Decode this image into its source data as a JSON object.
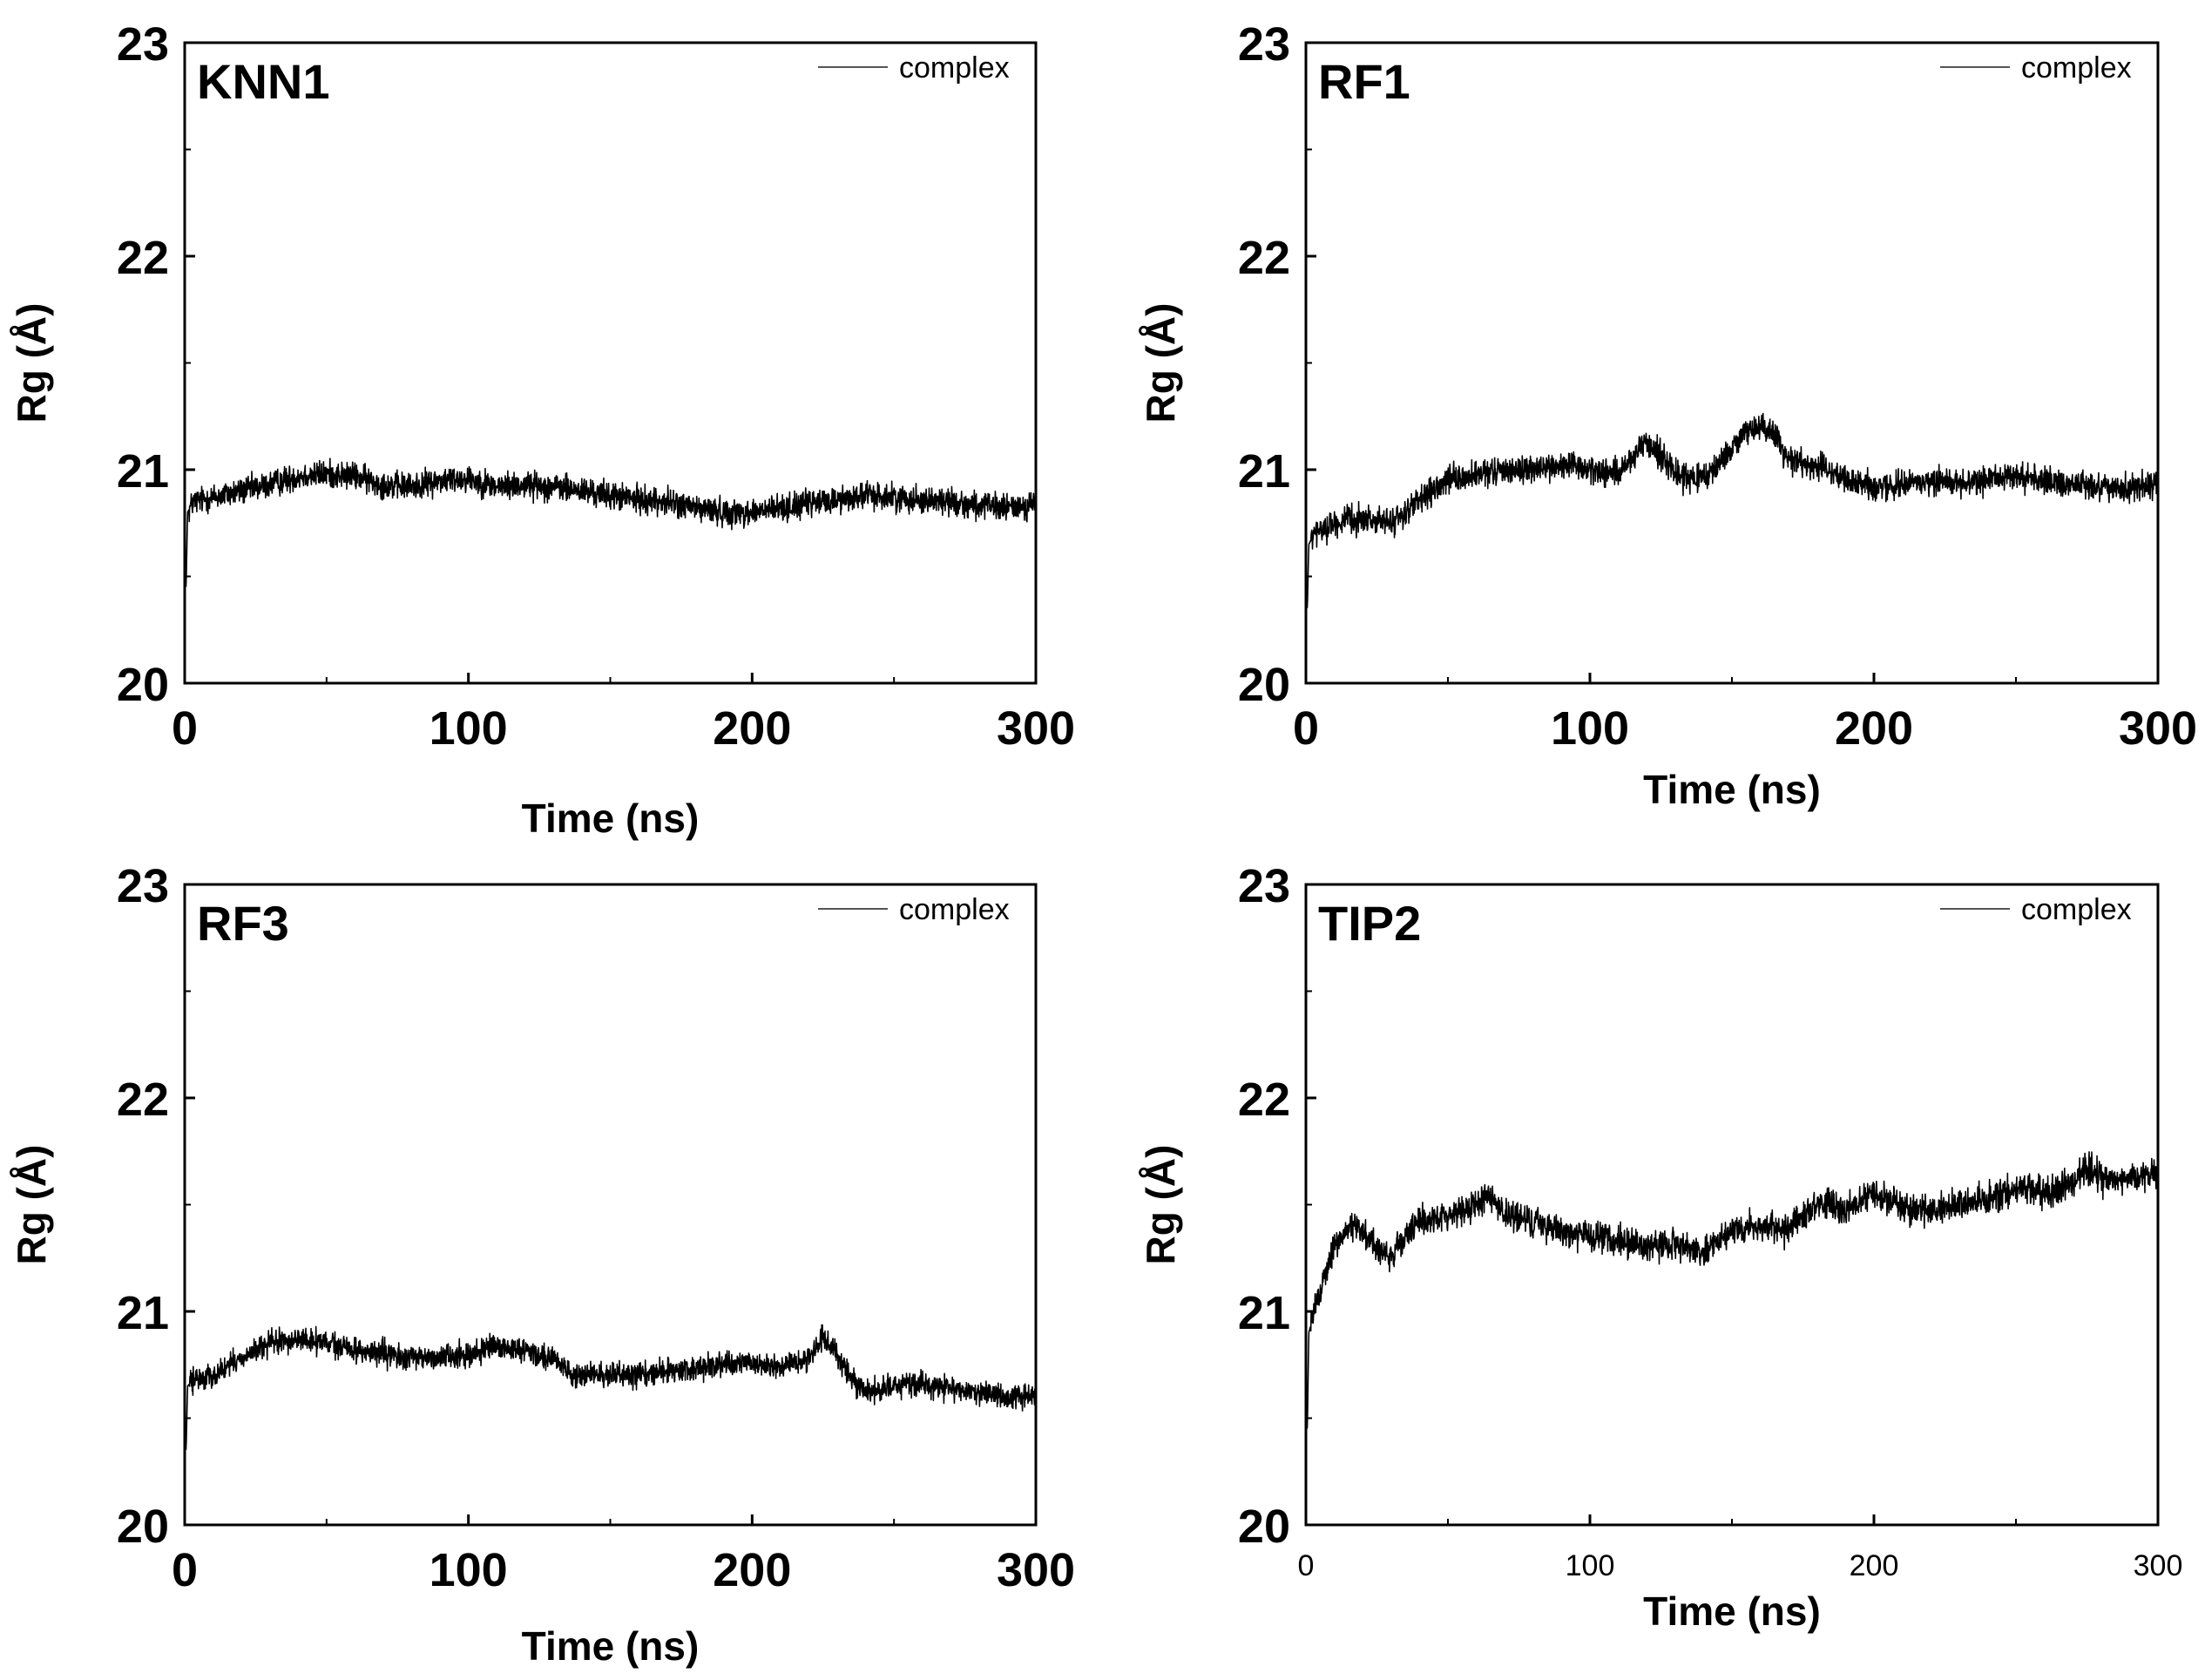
{
  "chart_data": [
    {
      "type": "line",
      "title": "KNN1",
      "xlabel": "Time (ns)",
      "ylabel": "Rg (Å)",
      "xlim": [
        0,
        300
      ],
      "ylim": [
        20,
        23
      ],
      "xticks": [
        0,
        100,
        200,
        300
      ],
      "yticks": [
        20,
        21,
        22,
        23
      ],
      "xtick_labels": [
        "0",
        "100",
        "200",
        "300"
      ],
      "ytick_labels": [
        "20",
        "21",
        "22",
        "23"
      ],
      "legend": [
        "complex"
      ],
      "legend_position": "top-right",
      "series": [
        {
          "name": "complex",
          "noise": 0.045,
          "x": [
            0,
            0.5,
            1,
            3,
            10,
            20,
            30,
            40,
            50,
            60,
            70,
            80,
            90,
            100,
            110,
            120,
            130,
            140,
            150,
            160,
            170,
            180,
            190,
            200,
            210,
            220,
            230,
            240,
            250,
            260,
            270,
            280,
            290,
            300
          ],
          "values": [
            20.5,
            20.45,
            20.8,
            20.85,
            20.87,
            20.9,
            20.93,
            20.97,
            20.98,
            20.97,
            20.93,
            20.92,
            20.95,
            20.96,
            20.92,
            20.93,
            20.92,
            20.9,
            20.88,
            20.86,
            20.85,
            20.82,
            20.8,
            20.8,
            20.82,
            20.84,
            20.86,
            20.88,
            20.87,
            20.86,
            20.85,
            20.83,
            20.82,
            20.84
          ]
        }
      ]
    },
    {
      "type": "line",
      "title": "RF1",
      "xlabel": "Time (ns)",
      "ylabel": "Rg (Å)",
      "xlim": [
        0,
        300
      ],
      "ylim": [
        20,
        23
      ],
      "xticks": [
        0,
        100,
        200,
        300
      ],
      "yticks": [
        20,
        21,
        22,
        23
      ],
      "xtick_labels": [
        "0",
        "100",
        "200",
        "300"
      ],
      "ytick_labels": [
        "20",
        "21",
        "22",
        "23"
      ],
      "legend": [
        "complex"
      ],
      "legend_position": "top-right",
      "series": [
        {
          "name": "complex",
          "noise": 0.045,
          "x": [
            0,
            0.5,
            1,
            3,
            10,
            20,
            30,
            40,
            50,
            60,
            70,
            80,
            90,
            100,
            110,
            115,
            120,
            125,
            130,
            140,
            150,
            155,
            160,
            165,
            170,
            180,
            190,
            200,
            210,
            220,
            230,
            240,
            250,
            260,
            270,
            280,
            290,
            300
          ],
          "values": [
            20.4,
            20.35,
            20.65,
            20.7,
            20.75,
            20.77,
            20.75,
            20.85,
            20.95,
            20.97,
            21.0,
            21.0,
            21.02,
            21.0,
            20.98,
            21.05,
            21.12,
            21.08,
            20.98,
            20.95,
            21.1,
            21.18,
            21.2,
            21.17,
            21.05,
            21.02,
            20.95,
            20.92,
            20.93,
            20.95,
            20.94,
            20.95,
            20.97,
            20.95,
            20.93,
            20.92,
            20.91,
            20.93
          ]
        }
      ]
    },
    {
      "type": "line",
      "title": "RF3",
      "xlabel": "Time (ns)",
      "ylabel": "Rg (Å)",
      "xlim": [
        0,
        300
      ],
      "ylim": [
        20,
        23
      ],
      "xticks": [
        0,
        100,
        200,
        300
      ],
      "yticks": [
        20,
        21,
        22,
        23
      ],
      "xtick_labels": [
        "0",
        "100",
        "200",
        "300"
      ],
      "ytick_labels": [
        "20",
        "21",
        "22",
        "23"
      ],
      "legend": [
        "complex"
      ],
      "legend_position": "top-right",
      "series": [
        {
          "name": "complex",
          "noise": 0.04,
          "x": [
            0,
            0.5,
            1,
            3,
            10,
            20,
            30,
            40,
            50,
            60,
            70,
            80,
            90,
            100,
            110,
            120,
            130,
            135,
            140,
            150,
            160,
            170,
            180,
            190,
            200,
            210,
            220,
            225,
            230,
            235,
            240,
            250,
            260,
            270,
            280,
            290,
            300
          ],
          "values": [
            20.4,
            20.35,
            20.65,
            20.68,
            20.7,
            20.78,
            20.85,
            20.87,
            20.85,
            20.82,
            20.8,
            20.78,
            20.79,
            20.8,
            20.83,
            20.82,
            20.78,
            20.72,
            20.7,
            20.7,
            20.71,
            20.72,
            20.73,
            20.75,
            20.76,
            20.74,
            20.78,
            20.88,
            20.8,
            20.68,
            20.62,
            20.65,
            20.66,
            20.64,
            20.62,
            20.6,
            20.6
          ]
        }
      ]
    },
    {
      "type": "line",
      "title": "TIP2",
      "xlabel": "Time (ns)",
      "ylabel": "Rg (Å)",
      "xlim": [
        0,
        300
      ],
      "ylim": [
        20,
        23
      ],
      "xticks": [
        0,
        100,
        200,
        300
      ],
      "yticks": [
        20,
        21,
        22,
        23
      ],
      "xtick_labels": [
        "0",
        "100",
        "200",
        "300"
      ],
      "ytick_labels": [
        "20",
        "21",
        "22",
        "23"
      ],
      "legend": [
        "complex"
      ],
      "legend_position": "top-right",
      "series": [
        {
          "name": "complex",
          "noise": 0.05,
          "x": [
            0,
            0.5,
            1,
            3,
            6,
            10,
            15,
            20,
            25,
            30,
            35,
            40,
            50,
            60,
            65,
            70,
            80,
            90,
            100,
            110,
            120,
            130,
            140,
            150,
            160,
            170,
            180,
            190,
            200,
            210,
            220,
            230,
            240,
            250,
            260,
            270,
            275,
            280,
            290,
            300
          ],
          "values": [
            20.5,
            20.45,
            20.9,
            21.0,
            21.15,
            21.3,
            21.4,
            21.38,
            21.3,
            21.25,
            21.35,
            21.42,
            21.45,
            21.5,
            21.55,
            21.45,
            21.42,
            21.38,
            21.35,
            21.33,
            21.3,
            21.32,
            21.28,
            21.38,
            21.4,
            21.38,
            21.5,
            21.48,
            21.55,
            21.5,
            21.48,
            21.5,
            21.52,
            21.58,
            21.55,
            21.6,
            21.68,
            21.62,
            21.62,
            21.65
          ]
        }
      ]
    }
  ]
}
